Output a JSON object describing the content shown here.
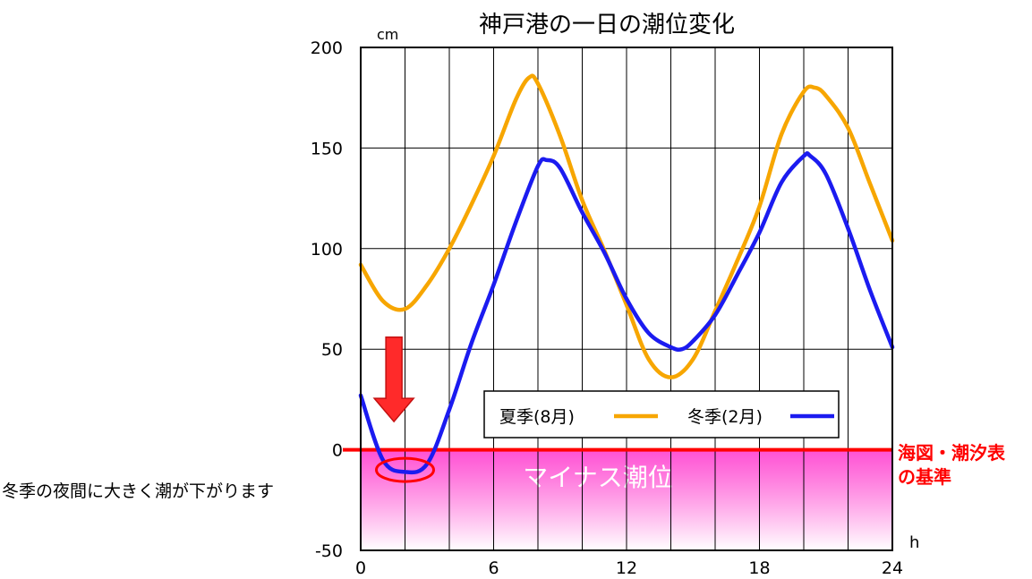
{
  "chart_data": {
    "type": "line",
    "title": "神戸港の一日の潮位変化",
    "xlabel": "h",
    "ylabel": "cm",
    "xlim": [
      0,
      24
    ],
    "ylim": [
      -50,
      200
    ],
    "x_ticks": [
      "0",
      "6",
      "12",
      "18",
      "24"
    ],
    "y_ticks": [
      "200",
      "150",
      "100",
      "50",
      "0",
      "-50"
    ],
    "grid": true,
    "legend_position": "bottom-right",
    "series": [
      {
        "name": "夏季(8月)",
        "color": "#f7a600",
        "x": [
          0,
          1,
          2,
          3,
          4,
          5,
          6,
          7,
          7.6,
          8,
          9,
          10,
          11,
          12,
          13,
          14,
          15,
          16,
          17,
          18,
          19,
          20,
          20.5,
          21,
          22,
          23,
          24
        ],
        "y": [
          92,
          74,
          70,
          82,
          100,
          122,
          146,
          174,
          185,
          182,
          156,
          124,
          99,
          72,
          45,
          36,
          45,
          69,
          94,
          121,
          157,
          178,
          180,
          176,
          160,
          132,
          104
        ]
      },
      {
        "name": "冬季(2月)",
        "color": "#1b1bf0",
        "x": [
          0,
          1,
          2,
          3,
          4,
          5,
          6,
          7,
          8,
          8.4,
          9,
          10,
          11,
          12,
          13,
          14,
          14.5,
          15,
          16,
          17,
          18,
          19,
          20,
          20.3,
          21,
          22,
          23,
          24
        ],
        "y": [
          27,
          -5,
          -11,
          -7,
          20,
          53,
          82,
          113,
          141,
          144,
          140,
          118,
          98,
          75,
          58,
          51,
          50,
          54,
          67,
          87,
          108,
          133,
          146,
          146,
          137,
          110,
          79,
          51
        ]
      }
    ],
    "zero_line": {
      "value": 0,
      "color": "#ff0000",
      "label": "海図・潮汐表\nの基準",
      "label_line1": "海図・潮汐表",
      "label_line2": "の基準"
    },
    "negative_region": {
      "label": "マイナス潮位",
      "from": 0,
      "to": -50
    },
    "annotation": {
      "text": "冬季の夜間に大きく潮が下がります",
      "arrow_x": 1.5,
      "arrow_y_from": 56,
      "arrow_y_to": 14,
      "ellipse_x": 2,
      "ellipse_y": -10
    }
  },
  "colors": {
    "grid": "#000000",
    "negative_fill_top": "#ff33cc",
    "negative_fill_bottom": "#ffffff",
    "arrow": "#ff2a2a",
    "ellipse": "#ff0000",
    "zero_label": "#ff0000"
  }
}
